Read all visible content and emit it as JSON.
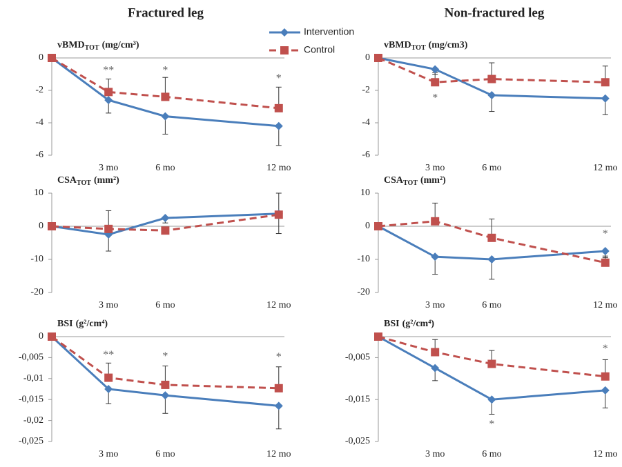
{
  "column_titles": [
    "Fractured leg",
    "Non-fractured leg"
  ],
  "chart_data": [
    {
      "type": "line",
      "title": "vBMD",
      "title_subscript": "TOT",
      "title_unit": "(mg/cm³)",
      "x": [
        0,
        3,
        6,
        12
      ],
      "xlim": [
        0,
        12.3
      ],
      "xticks": [
        {
          "value": 3,
          "label": "3 mo"
        },
        {
          "value": 6,
          "label": "6 mo"
        },
        {
          "value": 12,
          "label": "12 mo"
        }
      ],
      "ylim": [
        -6,
        0
      ],
      "yticks": [
        0,
        -2,
        -4,
        -6
      ],
      "series": [
        {
          "name": "Intervention",
          "color": "#4a7ebb",
          "marker": "diamond",
          "dashed": false,
          "error_direction": "down",
          "values": [
            0,
            -2.6,
            -3.6,
            -4.2
          ],
          "errors": [
            0,
            0.8,
            1.1,
            1.2
          ]
        },
        {
          "name": "Control",
          "color": "#c0504d",
          "marker": "square",
          "dashed": true,
          "error_direction": "up",
          "values": [
            0,
            -2.1,
            -2.4,
            -3.1
          ],
          "errors": [
            0,
            0.8,
            1.2,
            1.3
          ]
        }
      ],
      "annotations": [
        {
          "text": "**",
          "x": 3,
          "y": -0.8
        },
        {
          "text": "*",
          "x": 6,
          "y": -0.8
        },
        {
          "text": "*",
          "x": 12,
          "y": -1.3
        }
      ]
    },
    {
      "type": "line",
      "title": "vBMD",
      "title_subscript": "TOT",
      "title_unit": "(mg/cm3)",
      "x": [
        0,
        3,
        6,
        12
      ],
      "xlim": [
        0,
        12.3
      ],
      "xticks": [
        {
          "value": 3,
          "label": "3 mo"
        },
        {
          "value": 6,
          "label": "6 mo"
        },
        {
          "value": 12,
          "label": "12 mo"
        }
      ],
      "ylim": [
        -6,
        0
      ],
      "yticks": [
        0,
        -2,
        -4,
        -6
      ],
      "series": [
        {
          "name": "Intervention",
          "color": "#4a7ebb",
          "marker": "diamond",
          "dashed": false,
          "error_direction": "down",
          "values": [
            0,
            -0.7,
            -2.3,
            -2.5
          ],
          "errors": [
            0,
            0.3,
            1.0,
            1.0
          ]
        },
        {
          "name": "Control",
          "color": "#c0504d",
          "marker": "square",
          "dashed": true,
          "error_direction": "up",
          "values": [
            0,
            -1.5,
            -1.3,
            -1.5
          ],
          "errors": [
            0,
            0.6,
            1.0,
            1.0
          ]
        }
      ],
      "annotations": [
        {
          "text": "*",
          "x": 3,
          "y": -2.5
        }
      ]
    },
    {
      "type": "line",
      "title": "CSA",
      "title_subscript": "TOT",
      "title_unit": "(mm²)",
      "x": [
        0,
        3,
        6,
        12
      ],
      "xlim": [
        0,
        12.3
      ],
      "xticks": [
        {
          "value": 3,
          "label": "3 mo"
        },
        {
          "value": 6,
          "label": "6 mo"
        },
        {
          "value": 12,
          "label": "12 mo"
        }
      ],
      "ylim": [
        -20,
        10
      ],
      "yticks": [
        10,
        0,
        -10,
        -20
      ],
      "series": [
        {
          "name": "Intervention",
          "color": "#4a7ebb",
          "marker": "diamond",
          "dashed": false,
          "error_direction": "down",
          "values": [
            0,
            -2.5,
            2.5,
            3.8
          ],
          "errors": [
            0,
            5,
            1.5,
            6
          ]
        },
        {
          "name": "Control",
          "color": "#c0504d",
          "marker": "square",
          "dashed": true,
          "error_direction": "up",
          "values": [
            0,
            -0.8,
            -1.3,
            3.5
          ],
          "errors": [
            0,
            5.5,
            0,
            6.5
          ]
        }
      ],
      "annotations": []
    },
    {
      "type": "line",
      "title": "CSA",
      "title_subscript": "TOT",
      "title_unit": "(mm²)",
      "x": [
        0,
        3,
        6,
        12
      ],
      "xlim": [
        0,
        12.3
      ],
      "xticks": [
        {
          "value": 3,
          "label": "3 mo"
        },
        {
          "value": 6,
          "label": "6 mo"
        },
        {
          "value": 12,
          "label": "12 mo"
        }
      ],
      "ylim": [
        -20,
        10
      ],
      "yticks": [
        10,
        0,
        -10,
        -20
      ],
      "series": [
        {
          "name": "Intervention",
          "color": "#4a7ebb",
          "marker": "diamond",
          "dashed": false,
          "error_direction": "down",
          "values": [
            0,
            -9.2,
            -10,
            -7.5
          ],
          "errors": [
            0,
            5.3,
            6,
            2
          ]
        },
        {
          "name": "Control",
          "color": "#c0504d",
          "marker": "square",
          "dashed": true,
          "error_direction": "up",
          "values": [
            0,
            1.5,
            -3.5,
            -11
          ],
          "errors": [
            0,
            5.5,
            5.7,
            2
          ]
        }
      ],
      "annotations": [
        {
          "text": "*",
          "x": 12,
          "y": -2.5
        }
      ]
    },
    {
      "type": "line",
      "title": "BSI",
      "title_unit": "(g²/cm⁴)",
      "x": [
        0,
        3,
        6,
        12
      ],
      "xlim": [
        0,
        12.3
      ],
      "xticks": [
        {
          "value": 3,
          "label": "3 mo"
        },
        {
          "value": 6,
          "label": "6 mo"
        },
        {
          "value": 12,
          "label": "12 mo"
        }
      ],
      "ylim": [
        -0.025,
        0
      ],
      "yticks": [
        0,
        {
          "value": -0.005,
          "label": "-0,005"
        },
        {
          "value": -0.01,
          "label": "-0,01"
        },
        {
          "value": -0.015,
          "label": "-0,015"
        },
        {
          "value": -0.02,
          "label": "-0,02"
        },
        {
          "value": -0.025,
          "label": "-0,025"
        }
      ],
      "series": [
        {
          "name": "Intervention",
          "color": "#4a7ebb",
          "marker": "diamond",
          "dashed": false,
          "error_direction": "down",
          "values": [
            0,
            -0.0125,
            -0.014,
            -0.0165
          ],
          "errors": [
            0,
            0.0035,
            0.0043,
            0.0055
          ]
        },
        {
          "name": "Control",
          "color": "#c0504d",
          "marker": "square",
          "dashed": true,
          "error_direction": "up",
          "values": [
            0,
            -0.0098,
            -0.0115,
            -0.0123
          ],
          "errors": [
            0,
            0.0035,
            0.0045,
            0.0051
          ]
        }
      ],
      "annotations": [
        {
          "text": "**",
          "x": 3,
          "y": -0.0045
        },
        {
          "text": "*",
          "x": 6,
          "y": -0.0048
        },
        {
          "text": "*",
          "x": 12,
          "y": -0.005
        }
      ]
    },
    {
      "type": "line",
      "title": "BSI",
      "title_unit": "(g²/cm⁴)",
      "x": [
        0,
        3,
        6,
        12
      ],
      "xlim": [
        0,
        12.3
      ],
      "xticks": [
        {
          "value": 3,
          "label": "3 mo"
        },
        {
          "value": 6,
          "label": "6 mo"
        },
        {
          "value": 12,
          "label": "12 mo"
        }
      ],
      "ylim": [
        -0.025,
        0
      ],
      "yticks": [
        {
          "value": -0.005,
          "label": "-0,005"
        },
        {
          "value": -0.015,
          "label": "-0,015"
        },
        {
          "value": -0.025,
          "label": "-0,025"
        }
      ],
      "series": [
        {
          "name": "Intervention",
          "color": "#4a7ebb",
          "marker": "diamond",
          "dashed": false,
          "error_direction": "down",
          "values": [
            0,
            -0.0075,
            -0.015,
            -0.0128
          ],
          "errors": [
            0,
            0.003,
            0.0035,
            0.0042
          ]
        },
        {
          "name": "Control",
          "color": "#c0504d",
          "marker": "square",
          "dashed": true,
          "error_direction": "up",
          "values": [
            0,
            -0.0037,
            -0.0065,
            -0.0095
          ],
          "errors": [
            0,
            0.003,
            0.0032,
            0.004
          ]
        }
      ],
      "annotations": [
        {
          "text": "*",
          "x": 6,
          "y": -0.021
        },
        {
          "text": "*",
          "x": 12,
          "y": -0.003
        }
      ]
    }
  ]
}
